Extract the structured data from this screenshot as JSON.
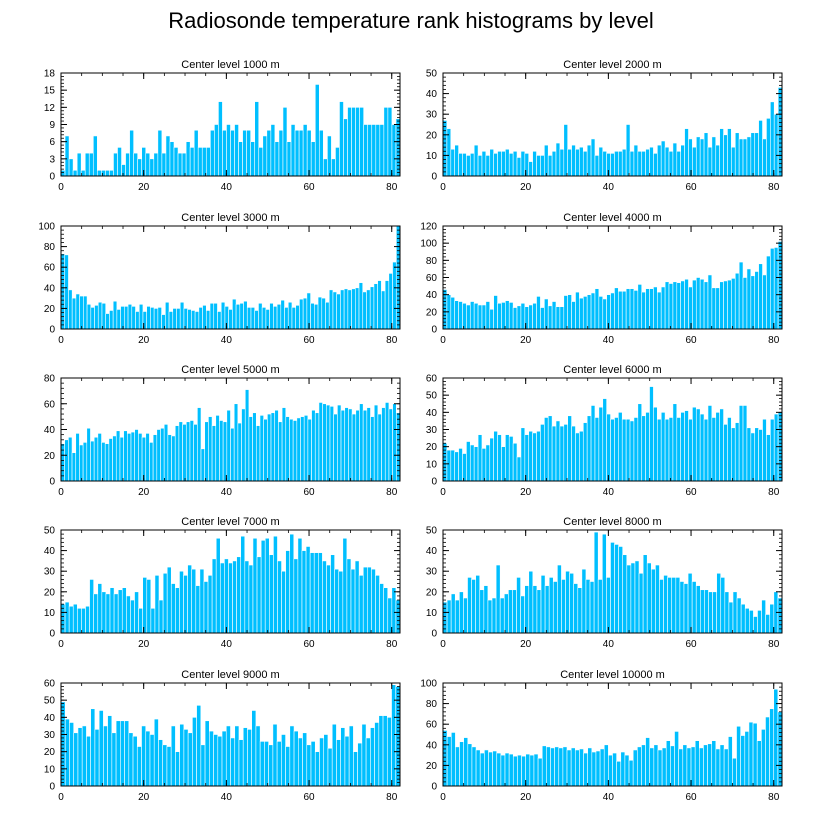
{
  "title": "Radiosonde temperature rank histograms by level",
  "colors": {
    "bar": "#00bfff",
    "bar_edge": "#ffffff",
    "axis": "#000000"
  },
  "chart_data": [
    {
      "type": "bar",
      "title": "Center level 1000 m",
      "xlim": [
        0,
        82
      ],
      "ylim": [
        0,
        18
      ],
      "xticks": [
        0,
        20,
        40,
        60,
        80
      ],
      "yticks": [
        0,
        3,
        6,
        9,
        12,
        15,
        18
      ],
      "values": [
        1,
        7,
        3,
        1,
        4,
        1,
        4,
        4,
        7,
        1,
        1,
        1,
        1,
        4,
        5,
        2,
        4,
        8,
        4,
        3,
        5,
        4,
        3,
        4,
        8,
        4,
        7,
        6,
        5,
        4,
        4,
        6,
        5,
        8,
        5,
        5,
        5,
        8,
        9,
        13,
        8,
        9,
        8,
        9,
        6,
        8,
        8,
        6,
        13,
        5,
        7,
        8,
        9,
        6,
        8,
        12,
        6,
        9,
        8,
        8,
        9,
        8,
        6,
        16,
        8,
        3,
        7,
        3,
        5,
        13,
        10,
        12,
        12,
        12,
        12,
        9,
        9,
        9,
        9,
        9,
        12,
        12,
        9,
        10
      ]
    },
    {
      "type": "bar",
      "title": "Center level 2000 m",
      "xlim": [
        0,
        82
      ],
      "ylim": [
        0,
        50
      ],
      "xticks": [
        0,
        20,
        40,
        60,
        80
      ],
      "yticks": [
        0,
        10,
        20,
        30,
        40,
        50
      ],
      "values": [
        27,
        23,
        13,
        15,
        11,
        11,
        10,
        11,
        15,
        10,
        12,
        10,
        13,
        11,
        12,
        12,
        13,
        11,
        12,
        9,
        12,
        11,
        7,
        12,
        10,
        10,
        15,
        10,
        12,
        16,
        13,
        25,
        13,
        15,
        13,
        14,
        12,
        15,
        18,
        10,
        14,
        12,
        11,
        11,
        12,
        12,
        13,
        25,
        12,
        15,
        12,
        12,
        13,
        14,
        11,
        15,
        17,
        14,
        12,
        16,
        12,
        15,
        23,
        18,
        14,
        19,
        18,
        21,
        14,
        19,
        15,
        23,
        20,
        23,
        14,
        21,
        18,
        18,
        19,
        21,
        21,
        27,
        18,
        28,
        36,
        30,
        43
      ]
    },
    {
      "type": "bar",
      "title": "Center level 3000 m",
      "xlim": [
        0,
        82
      ],
      "ylim": [
        0,
        100
      ],
      "xticks": [
        0,
        20,
        40,
        60,
        80
      ],
      "yticks": [
        0,
        20,
        40,
        60,
        80,
        100
      ],
      "values": [
        73,
        72,
        38,
        30,
        34,
        32,
        32,
        24,
        21,
        23,
        26,
        25,
        15,
        18,
        27,
        19,
        22,
        22,
        24,
        22,
        17,
        24,
        17,
        22,
        21,
        20,
        21,
        14,
        26,
        17,
        20,
        20,
        26,
        20,
        19,
        18,
        17,
        21,
        23,
        18,
        25,
        25,
        17,
        26,
        22,
        19,
        29,
        24,
        25,
        27,
        21,
        21,
        18,
        25,
        21,
        19,
        25,
        22,
        24,
        28,
        21,
        26,
        21,
        23,
        29,
        30,
        35,
        25,
        24,
        31,
        30,
        26,
        38,
        36,
        34,
        38,
        39,
        38,
        39,
        40,
        45,
        36,
        38,
        41,
        44,
        47,
        37,
        47,
        54,
        65,
        100
      ]
    },
    {
      "type": "bar",
      "title": "Center level 4000 m",
      "xlim": [
        0,
        82
      ],
      "ylim": [
        0,
        120
      ],
      "xticks": [
        0,
        20,
        40,
        60,
        80
      ],
      "yticks": [
        0,
        20,
        40,
        60,
        80,
        100,
        120
      ],
      "values": [
        46,
        40,
        37,
        33,
        32,
        30,
        28,
        32,
        30,
        28,
        28,
        32,
        23,
        39,
        30,
        31,
        33,
        31,
        25,
        27,
        30,
        26,
        28,
        30,
        38,
        25,
        35,
        27,
        32,
        26,
        26,
        39,
        40,
        32,
        43,
        36,
        38,
        40,
        42,
        47,
        38,
        35,
        40,
        42,
        48,
        44,
        44,
        47,
        47,
        45,
        52,
        43,
        47,
        47,
        49,
        43,
        49,
        55,
        53,
        55,
        54,
        56,
        58,
        49,
        57,
        60,
        58,
        55,
        63,
        48,
        48,
        55,
        56,
        57,
        59,
        65,
        78,
        60,
        70,
        62,
        67,
        76,
        63,
        85,
        94,
        95,
        102
      ]
    },
    {
      "type": "bar",
      "title": "Center level 5000 m",
      "xlim": [
        0,
        82
      ],
      "ylim": [
        0,
        80
      ],
      "xticks": [
        0,
        20,
        40,
        60,
        80
      ],
      "yticks": [
        0,
        20,
        40,
        60,
        80
      ],
      "values": [
        29,
        32,
        34,
        22,
        37,
        28,
        30,
        41,
        31,
        34,
        37,
        30,
        29,
        33,
        35,
        39,
        34,
        39,
        37,
        38,
        40,
        37,
        34,
        37,
        30,
        36,
        40,
        41,
        44,
        36,
        35,
        43,
        46,
        44,
        46,
        47,
        44,
        57,
        25,
        46,
        50,
        43,
        51,
        47,
        46,
        55,
        41,
        60,
        45,
        56,
        71,
        50,
        53,
        43,
        51,
        48,
        52,
        53,
        55,
        46,
        57,
        50,
        48,
        47,
        49,
        50,
        51,
        48,
        55,
        53,
        61,
        60,
        59,
        58,
        52,
        59,
        55,
        57,
        56,
        52,
        55,
        60,
        55,
        57,
        50,
        59,
        52,
        57,
        61,
        56,
        60,
        53
      ]
    },
    {
      "type": "bar",
      "title": "Center level 6000 m",
      "xlim": [
        0,
        82
      ],
      "ylim": [
        0,
        60
      ],
      "xticks": [
        0,
        20,
        40,
        60,
        80
      ],
      "yticks": [
        0,
        10,
        20,
        30,
        40,
        50,
        60
      ],
      "values": [
        22,
        18,
        18,
        17,
        19,
        16,
        23,
        21,
        20,
        27,
        19,
        21,
        25,
        29,
        27,
        20,
        27,
        26,
        22,
        14,
        31,
        27,
        29,
        28,
        29,
        33,
        37,
        38,
        32,
        35,
        32,
        33,
        38,
        32,
        28,
        29,
        34,
        38,
        44,
        37,
        43,
        48,
        39,
        36,
        37,
        40,
        36,
        36,
        35,
        37,
        45,
        38,
        40,
        55,
        43,
        36,
        40,
        36,
        37,
        45,
        37,
        40,
        41,
        36,
        43,
        42,
        39,
        36,
        44,
        37,
        40,
        42,
        33,
        37,
        31,
        34,
        44,
        44,
        31,
        28,
        31,
        30,
        36,
        27,
        36,
        39,
        40
      ]
    },
    {
      "type": "bar",
      "title": "Center level 7000 m",
      "xlim": [
        0,
        82
      ],
      "ylim": [
        0,
        50
      ],
      "xticks": [
        0,
        20,
        40,
        60,
        80
      ],
      "yticks": [
        0,
        10,
        20,
        30,
        40,
        50
      ],
      "values": [
        14,
        15,
        13,
        14,
        12,
        12,
        13,
        26,
        19,
        24,
        20,
        19,
        22,
        19,
        21,
        22,
        18,
        16,
        20,
        12,
        27,
        26,
        12,
        28,
        16,
        29,
        32,
        24,
        22,
        30,
        28,
        33,
        31,
        23,
        31,
        25,
        28,
        36,
        46,
        34,
        36,
        34,
        35,
        37,
        47,
        35,
        33,
        46,
        37,
        45,
        46,
        38,
        47,
        35,
        30,
        40,
        48,
        36,
        46,
        40,
        42,
        39,
        39,
        39,
        35,
        33,
        38,
        31,
        30,
        46,
        36,
        31,
        35,
        28,
        32,
        32,
        31,
        28,
        24,
        22,
        17,
        22,
        16
      ]
    },
    {
      "type": "bar",
      "title": "Center level 8000 m",
      "xlim": [
        0,
        82
      ],
      "ylim": [
        0,
        50
      ],
      "xticks": [
        0,
        20,
        40,
        60,
        80
      ],
      "yticks": [
        0,
        10,
        20,
        30,
        40,
        50
      ],
      "values": [
        15,
        16,
        19,
        16,
        20,
        17,
        27,
        26,
        28,
        21,
        23,
        16,
        17,
        33,
        17,
        19,
        21,
        21,
        27,
        18,
        23,
        30,
        23,
        21,
        28,
        23,
        27,
        25,
        33,
        26,
        30,
        29,
        24,
        22,
        31,
        26,
        25,
        49,
        26,
        48,
        27,
        44,
        43,
        42,
        38,
        33,
        34,
        35,
        29,
        38,
        34,
        31,
        33,
        26,
        28,
        27,
        27,
        27,
        25,
        24,
        29,
        25,
        23,
        21,
        21,
        20,
        20,
        29,
        27,
        20,
        15,
        20,
        17,
        14,
        12,
        11,
        8,
        11,
        16,
        9,
        14,
        20,
        17
      ]
    },
    {
      "type": "bar",
      "title": "Center level 9000 m",
      "xlim": [
        0,
        82
      ],
      "ylim": [
        0,
        60
      ],
      "xticks": [
        0,
        20,
        40,
        60,
        80
      ],
      "yticks": [
        0,
        10,
        20,
        30,
        40,
        50,
        60
      ],
      "values": [
        49,
        39,
        37,
        31,
        34,
        35,
        29,
        45,
        33,
        44,
        35,
        41,
        31,
        38,
        38,
        38,
        31,
        29,
        23,
        35,
        32,
        30,
        39,
        27,
        24,
        23,
        35,
        20,
        36,
        33,
        31,
        40,
        47,
        24,
        38,
        32,
        30,
        29,
        32,
        35,
        28,
        35,
        27,
        34,
        33,
        44,
        35,
        26,
        26,
        24,
        36,
        26,
        30,
        23,
        35,
        32,
        28,
        31,
        24,
        26,
        20,
        28,
        30,
        22,
        36,
        27,
        34,
        29,
        35,
        20,
        25,
        36,
        28,
        34,
        37,
        41,
        41,
        40,
        59,
        58
      ]
    },
    {
      "type": "bar",
      "title": "Center level 10000 m",
      "xlim": [
        0,
        82
      ],
      "ylim": [
        0,
        100
      ],
      "xticks": [
        0,
        20,
        40,
        60,
        80
      ],
      "yticks": [
        0,
        20,
        40,
        60,
        80,
        100
      ],
      "values": [
        54,
        48,
        52,
        38,
        43,
        47,
        41,
        38,
        35,
        32,
        35,
        33,
        34,
        32,
        30,
        32,
        31,
        29,
        30,
        29,
        31,
        30,
        31,
        27,
        39,
        38,
        37,
        38,
        37,
        38,
        35,
        37,
        35,
        36,
        32,
        37,
        33,
        34,
        36,
        40,
        30,
        32,
        24,
        33,
        30,
        25,
        35,
        38,
        40,
        47,
        37,
        40,
        35,
        37,
        44,
        39,
        53,
        36,
        40,
        37,
        38,
        44,
        37,
        40,
        41,
        44,
        36,
        40,
        36,
        48,
        27,
        58,
        49,
        53,
        62,
        61,
        44,
        55,
        67,
        75,
        94,
        72
      ]
    }
  ]
}
